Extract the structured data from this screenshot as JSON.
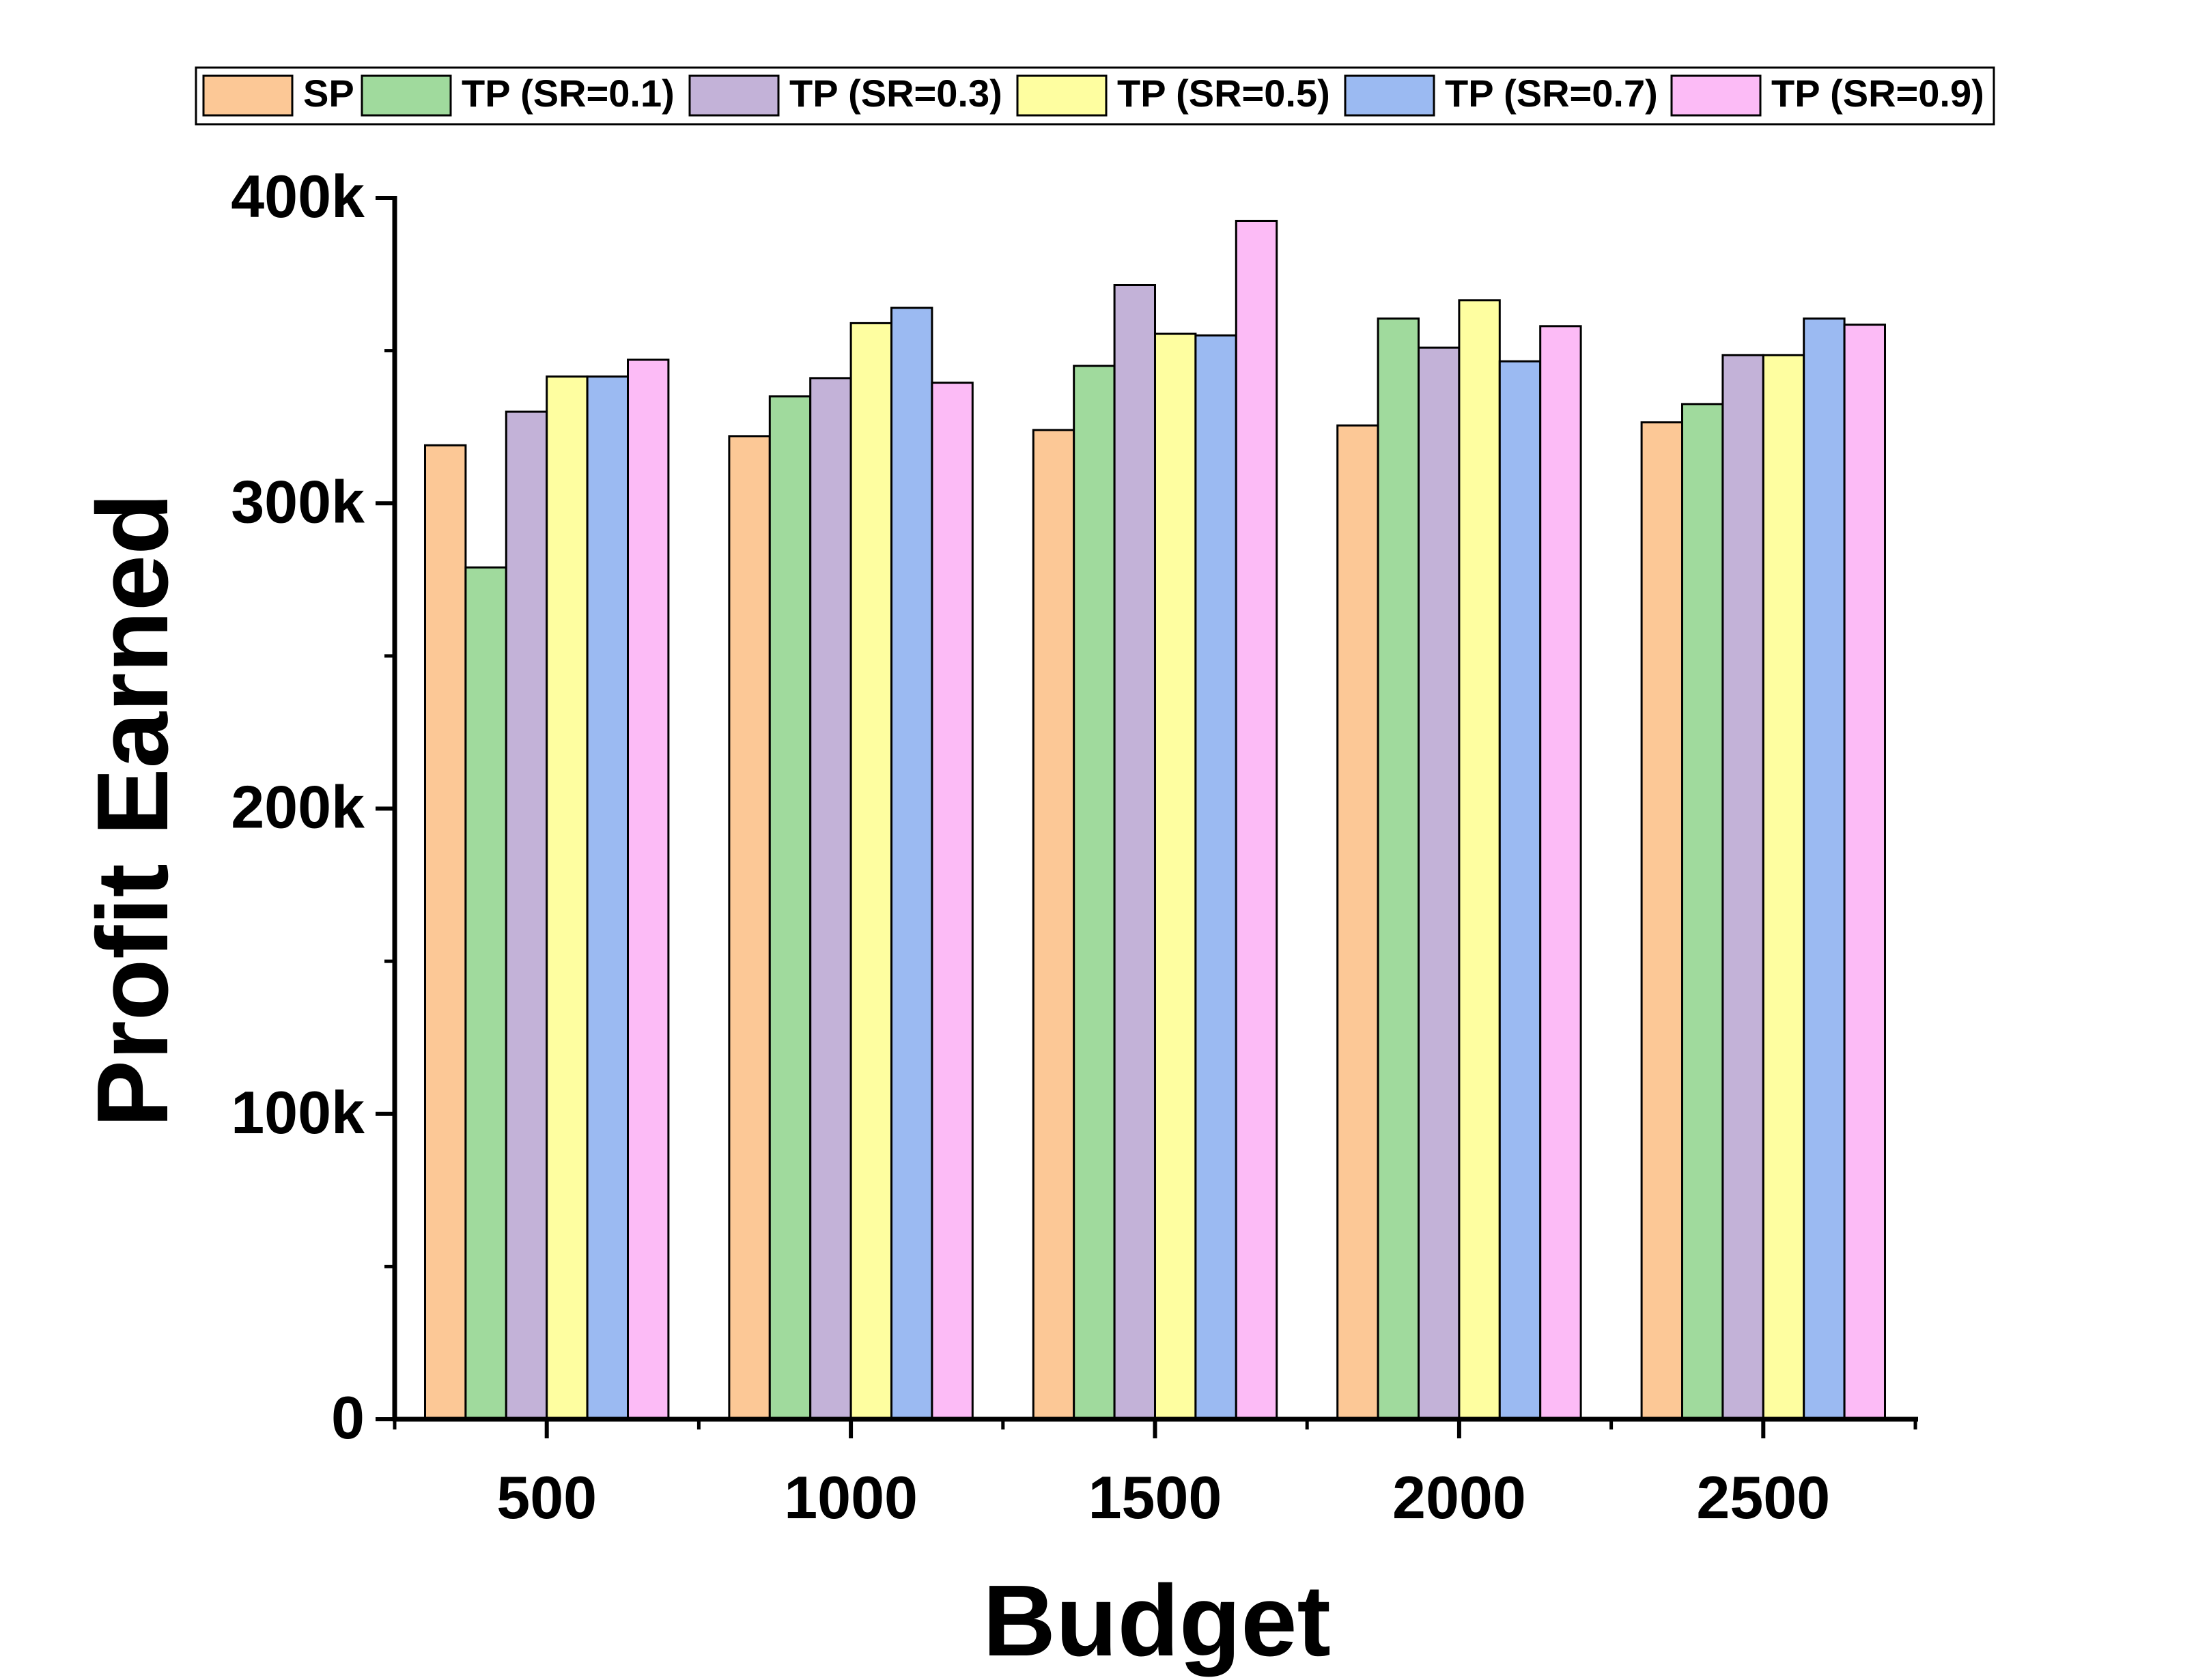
{
  "chart_data": {
    "type": "bar",
    "title": "",
    "xlabel": "Budget",
    "ylabel": "Profit Earned",
    "categories": [
      "500",
      "1000",
      "1500",
      "2000",
      "2500"
    ],
    "ylim": [
      0,
      400000
    ],
    "yticks": [
      {
        "value": 0,
        "label": "0"
      },
      {
        "value": 100000,
        "label": "100k"
      },
      {
        "value": 200000,
        "label": "200k"
      },
      {
        "value": 300000,
        "label": "300k"
      },
      {
        "value": 400000,
        "label": "400k"
      }
    ],
    "y_minor_tick_values": [
      50000,
      150000,
      250000,
      350000
    ],
    "grid": false,
    "legend_position": "top",
    "series": [
      {
        "name": "SP",
        "color": "#FCC896",
        "values": [
          319000,
          322000,
          324000,
          325500,
          326500
        ]
      },
      {
        "name": "TP (SR=0.1)",
        "color": "#A0DA9D",
        "values": [
          279000,
          335000,
          345000,
          360500,
          332500
        ]
      },
      {
        "name": "TP (SR=0.3)",
        "color": "#C3B2D8",
        "values": [
          330000,
          341000,
          371500,
          351000,
          348500
        ]
      },
      {
        "name": "TP (SR=0.5)",
        "color": "#FEFEA0",
        "values": [
          341500,
          359000,
          355500,
          366500,
          348500
        ]
      },
      {
        "name": "TP (SR=0.7)",
        "color": "#9BBAF2",
        "values": [
          341500,
          364000,
          355000,
          346500,
          360500
        ]
      },
      {
        "name": "TP (SR=0.9)",
        "color": "#FCBBF6",
        "values": [
          347000,
          339500,
          392500,
          358000,
          358500
        ]
      }
    ]
  }
}
